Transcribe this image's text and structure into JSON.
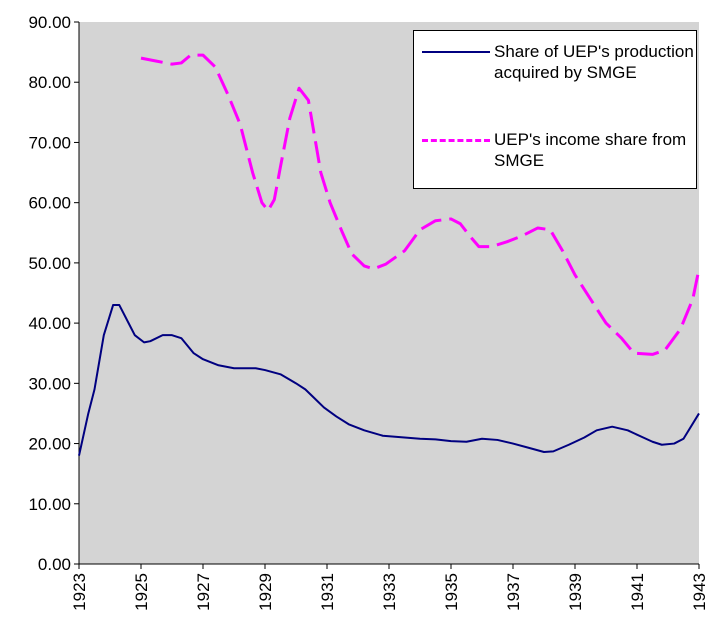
{
  "chart_data": {
    "type": "line",
    "x": [
      1923,
      1923.3,
      1923.5,
      1923.8,
      1924.1,
      1924.3,
      1924.6,
      1924.8,
      1925.1,
      1925.3,
      1925.7,
      1926,
      1926.3,
      1926.7,
      1927,
      1927.5,
      1928,
      1928.7,
      1929,
      1929.5,
      1930,
      1930.3,
      1930.6,
      1930.9,
      1931.3,
      1931.7,
      1932.2,
      1932.8,
      1933.5,
      1934,
      1934.5,
      1935,
      1935.5,
      1936,
      1936.5,
      1937,
      1937.5,
      1938,
      1938.3,
      1938.8,
      1939.3,
      1939.7,
      1940.2,
      1940.7,
      1941.2,
      1941.5,
      1941.8,
      1942.2,
      1942.5,
      1943
    ],
    "series": [
      {
        "name": "Share of UEP's production acquired by SMGE",
        "color": "#000080",
        "dash": false,
        "values": [
          18,
          25,
          29,
          38,
          43,
          43,
          40,
          38,
          36.8,
          37,
          38,
          38,
          37.5,
          35,
          34,
          33,
          32.5,
          32.5,
          32.2,
          31.5,
          30,
          29,
          27.5,
          26,
          24.5,
          23.2,
          22.2,
          21.3,
          21,
          20.8,
          20.7,
          20.4,
          20.3,
          20.8,
          20.6,
          20,
          19.3,
          18.6,
          18.7,
          19.8,
          21,
          22.2,
          22.8,
          22.2,
          21,
          20.3,
          19.8,
          20,
          20.8,
          25
        ]
      },
      {
        "name": "UEP's income share from SMGE",
        "color": "#ff00ff",
        "dash": true,
        "x": [
          1925,
          1925.5,
          1926,
          1926.3,
          1926.6,
          1927,
          1927.4,
          1927.8,
          1928.2,
          1928.6,
          1928.9,
          1929.1,
          1929.3,
          1929.5,
          1929.8,
          1930.1,
          1930.4,
          1930.6,
          1930.8,
          1931.1,
          1931.5,
          1931.8,
          1932.2,
          1932.5,
          1932.9,
          1933.5,
          1934,
          1934.5,
          1935,
          1935.3,
          1935.6,
          1935.9,
          1936.3,
          1936.8,
          1937.3,
          1937.8,
          1938.2,
          1938.6,
          1939,
          1939.5,
          1940,
          1940.5,
          1940.9,
          1941.5,
          1941.9,
          1942.4,
          1942.8,
          1943
        ],
        "values": [
          84,
          83.5,
          83,
          83.2,
          84.5,
          84.5,
          82.5,
          78,
          73,
          65,
          60,
          58.7,
          60.5,
          66,
          74,
          79,
          77,
          71,
          65,
          60,
          55,
          51.5,
          49.5,
          49,
          49.8,
          52,
          55.5,
          57,
          57.3,
          56.5,
          54.5,
          52.7,
          52.7,
          53.5,
          54.5,
          55.8,
          55.5,
          52,
          48,
          44,
          40,
          37.5,
          35,
          34.8,
          35.5,
          39,
          44,
          49
        ]
      }
    ],
    "xlim": [
      1923,
      1943
    ],
    "xticks": [
      1923,
      1925,
      1927,
      1929,
      1931,
      1933,
      1935,
      1937,
      1939,
      1941,
      1943
    ],
    "ylim": [
      0,
      90
    ],
    "yticks": [
      {
        "value": 0,
        "label": "0.00"
      },
      {
        "value": 10,
        "label": "10.00"
      },
      {
        "value": 20,
        "label": "20.00"
      },
      {
        "value": 30,
        "label": "30.00"
      },
      {
        "value": 40,
        "label": "40.00"
      },
      {
        "value": 50,
        "label": "50.00"
      },
      {
        "value": 60,
        "label": "60.00"
      },
      {
        "value": 70,
        "label": "70.00"
      },
      {
        "value": 80,
        "label": "80.00"
      },
      {
        "value": 90,
        "label": "90.00"
      }
    ],
    "grid": false,
    "legend": "upper right"
  }
}
